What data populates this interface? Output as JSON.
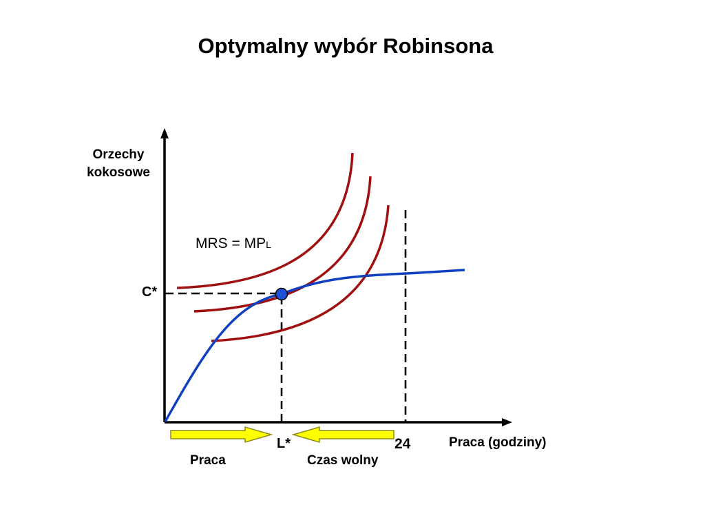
{
  "title": "Optymalny wybór Robinsona",
  "y_axis_label": [
    "Orzechy",
    "kokosowe"
  ],
  "x_axis_label": "Praca (godziny)",
  "mrs_label": {
    "main": "MRS = MP",
    "subscript": "L"
  },
  "c_star_label": "C*",
  "l_star_label": "L*",
  "tick_24_label": "24",
  "praca_label": "Praca",
  "czas_wolny_label": "Czas wolny",
  "colors": {
    "production_curve": "#1040c0",
    "indifference_curves": "#a01010",
    "optimum_point": "#1e50d8",
    "arrows_fill": "#ffff00",
    "arrows_stroke": "#8a8a20"
  }
}
